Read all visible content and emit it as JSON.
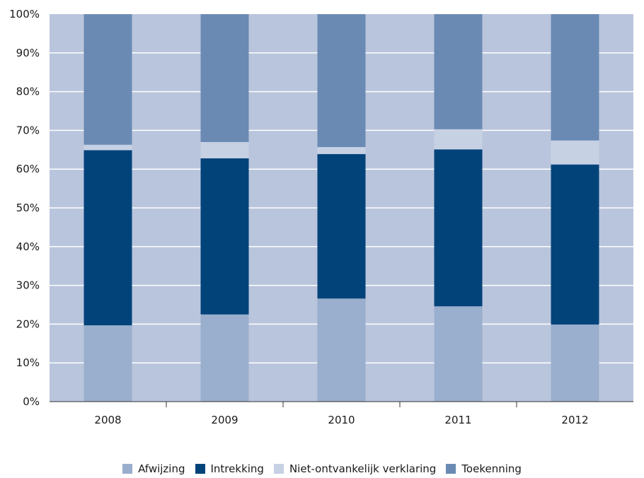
{
  "chart_data": {
    "type": "bar",
    "stacked": true,
    "percent": true,
    "categories": [
      "2008",
      "2009",
      "2010",
      "2011",
      "2012"
    ],
    "series": [
      {
        "name": "Afwijzing",
        "color": "#9aaecd",
        "values": [
          19.7,
          22.5,
          26.6,
          24.6,
          19.9
        ]
      },
      {
        "name": "Intrekking",
        "color": "#02437a",
        "values": [
          45.2,
          40.3,
          37.3,
          40.5,
          41.3
        ]
      },
      {
        "name": "Niet-ontvankelijk verklaring",
        "color": "#c7d1e4",
        "values": [
          1.4,
          4.2,
          1.8,
          5.2,
          6.2
        ]
      },
      {
        "name": "Toekenning",
        "color": "#6a8ab3",
        "values": [
          33.7,
          33.0,
          34.3,
          29.7,
          32.6
        ]
      }
    ],
    "yticks": [
      "0%",
      "10%",
      "20%",
      "30%",
      "40%",
      "50%",
      "60%",
      "70%",
      "80%",
      "90%",
      "100%"
    ],
    "ylim": [
      0,
      100
    ],
    "grid": true,
    "background": "#b9c5dc",
    "legend_position": "bottom"
  }
}
